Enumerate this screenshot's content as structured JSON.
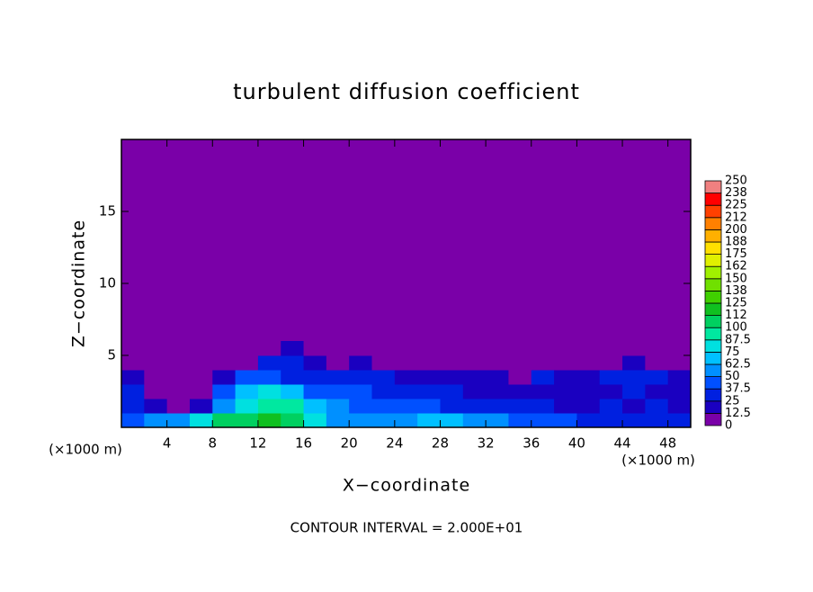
{
  "chart_data": {
    "type": "contour",
    "title": "turbulent diffusion coefficient",
    "x_label": "X−coordinate",
    "y_label": "Z−coordinate",
    "y_unit_label": "(×1000 m)",
    "x_unit_label": "(×1000 m)",
    "footer": "CONTOUR INTERVAL = 2.000E+01",
    "xlim": [
      0,
      50
    ],
    "xticks": [
      4,
      8,
      12,
      16,
      20,
      24,
      28,
      32,
      36,
      40,
      44,
      48
    ],
    "ylim": [
      0,
      20
    ],
    "yticks": [
      5,
      10,
      15
    ],
    "background_value": 0,
    "field": {
      "x_edges": [
        0,
        2,
        4,
        6,
        8,
        10,
        12,
        14,
        16,
        18,
        20,
        22,
        24,
        26,
        28,
        30,
        32,
        34,
        36,
        38,
        40,
        42,
        44,
        46,
        48,
        50
      ],
      "z_edges": [
        0,
        1,
        2,
        3,
        4,
        5,
        6
      ],
      "values": [
        [
          40,
          50,
          60,
          80,
          100,
          110,
          120,
          110,
          80,
          60,
          55,
          55,
          60,
          70,
          70,
          60,
          50,
          45,
          40,
          40,
          35,
          30,
          30,
          25,
          25
        ],
        [
          30,
          20,
          10,
          15,
          60,
          80,
          90,
          90,
          70,
          50,
          45,
          45,
          40,
          40,
          35,
          30,
          30,
          25,
          25,
          20,
          20,
          25,
          20,
          25,
          20
        ],
        [
          25,
          10,
          5,
          5,
          40,
          70,
          80,
          70,
          45,
          40,
          40,
          35,
          35,
          30,
          30,
          20,
          15,
          20,
          20,
          20,
          15,
          20,
          25,
          20,
          20
        ],
        [
          20,
          5,
          5,
          5,
          15,
          40,
          40,
          35,
          30,
          30,
          25,
          25,
          20,
          20,
          15,
          15,
          20,
          10,
          25,
          15,
          20,
          30,
          25,
          30,
          15
        ],
        [
          5,
          0,
          10,
          0,
          0,
          10,
          25,
          25,
          15,
          10,
          15,
          10,
          5,
          5,
          10,
          10,
          5,
          5,
          10,
          5,
          5,
          10,
          20,
          10,
          5
        ],
        [
          0,
          0,
          0,
          0,
          0,
          0,
          10,
          15,
          10,
          5,
          0,
          5,
          0,
          0,
          0,
          0,
          0,
          0,
          0,
          0,
          0,
          0,
          0,
          0,
          0
        ]
      ]
    },
    "colorbar": {
      "levels": [
        0,
        12.5,
        25,
        37.5,
        50,
        62.5,
        75,
        87.5,
        100,
        112,
        125,
        138,
        150,
        162,
        175,
        188,
        200,
        212,
        225,
        238,
        250
      ],
      "colors": [
        "#7a00a8",
        "#1a00c0",
        "#0020e0",
        "#0050ff",
        "#0090ff",
        "#00c0ff",
        "#00e0e0",
        "#00e8a0",
        "#00d060",
        "#10c020",
        "#40d000",
        "#70e000",
        "#a0f000",
        "#e0f000",
        "#ffe000",
        "#ffb000",
        "#ff8000",
        "#ff4000",
        "#ff0000",
        "#f08080"
      ]
    }
  }
}
